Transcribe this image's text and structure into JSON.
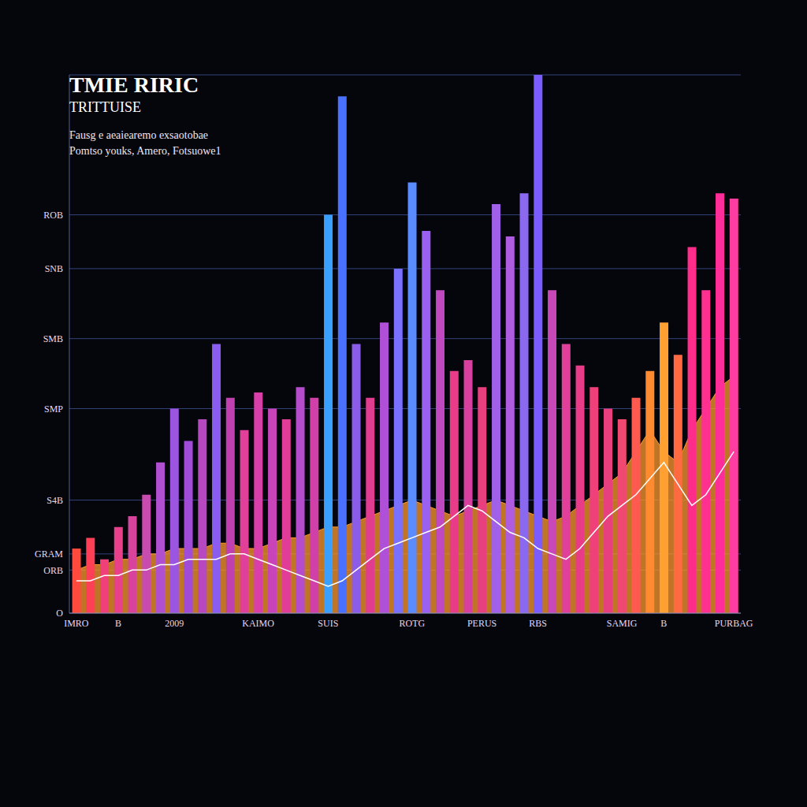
{
  "chart_data": {
    "type": "bar",
    "title": "TMIE RIRIC",
    "subtitle": "TRITTUISE",
    "annotations": [
      "Fausg e aeaiearemo exsaotobae",
      "Pomtso youks, Amero, Fotsuowe1"
    ],
    "categories": [
      "IMRO",
      null,
      null,
      "B",
      null,
      null,
      null,
      "2009",
      null,
      null,
      null,
      null,
      null,
      "KAIMO",
      null,
      null,
      null,
      null,
      "SUIS",
      null,
      null,
      null,
      null,
      null,
      "ROTG",
      null,
      null,
      null,
      null,
      "PERUS",
      null,
      null,
      null,
      "RBS",
      null,
      null,
      null,
      null,
      null,
      "SAMIG",
      null,
      null,
      "B",
      null,
      null,
      null,
      null,
      "PURBAG"
    ],
    "series": [
      {
        "type": "bar",
        "colors": [
          "#ff4a3d",
          "#ff3f55",
          "#f0407a",
          "#e8408a",
          "#d8449c",
          "#c84cb0",
          "#b050d0",
          "#9c55e0",
          "#a04cd8",
          "#b848c0",
          "#8a5cf0",
          "#c040b0",
          "#e0409a",
          "#d83fa8",
          "#c844b8",
          "#e03c98",
          "#b44ccc",
          "#d040a8",
          "#3aa0ff",
          "#4a70ff",
          "#8a5ce8",
          "#e03c90",
          "#b050d8",
          "#7a70ff",
          "#5a8cff",
          "#9a60f0",
          "#c048c0",
          "#e83c88",
          "#d840a0",
          "#e8407e",
          "#a060e8",
          "#b05ce0",
          "#8a68f0",
          "#7a5cff",
          "#c848b8",
          "#e0409a",
          "#e83c88",
          "#f0407a",
          "#e8407e",
          "#f04870",
          "#ff5a50",
          "#ff8a30",
          "#ffa030",
          "#ff6a40",
          "#ff2d8a",
          "#ff3090",
          "#ff2d9a",
          "#ff3ca0"
        ],
        "values": [
          12,
          14,
          10,
          16,
          18,
          22,
          28,
          38,
          32,
          36,
          50,
          40,
          34,
          41,
          38,
          36,
          42,
          40,
          74,
          96,
          50,
          40,
          54,
          64,
          80,
          71,
          60,
          45,
          47,
          42,
          76,
          70,
          78,
          100,
          60,
          50,
          46,
          42,
          38,
          36,
          40,
          45,
          54,
          48,
          68,
          60,
          78,
          77
        ]
      },
      {
        "type": "area",
        "color": "#ff9a2e",
        "values": [
          8,
          9,
          9,
          10,
          10,
          11,
          11,
          12,
          12,
          12,
          13,
          13,
          12,
          12,
          13,
          14,
          14,
          15,
          16,
          16,
          17,
          18,
          19,
          20,
          21,
          20,
          19,
          18,
          19,
          20,
          21,
          20,
          19,
          18,
          17,
          18,
          20,
          22,
          24,
          26,
          30,
          34,
          30,
          28,
          34,
          38,
          42,
          44
        ]
      },
      {
        "type": "line",
        "color": "#ffffff",
        "values": [
          6,
          6,
          7,
          7,
          8,
          8,
          9,
          9,
          10,
          10,
          10,
          11,
          11,
          10,
          9,
          8,
          7,
          6,
          5,
          6,
          8,
          10,
          12,
          13,
          14,
          15,
          16,
          18,
          20,
          19,
          17,
          15,
          14,
          12,
          11,
          10,
          12,
          15,
          18,
          20,
          22,
          25,
          28,
          24,
          20,
          22,
          26,
          30
        ]
      }
    ],
    "ylim": [
      0,
      100
    ],
    "yticks": [
      {
        "value": 0,
        "label": "O"
      },
      {
        "value": 8,
        "label": "ORB"
      },
      {
        "value": 11,
        "label": "GRAM"
      },
      {
        "value": 21,
        "label": "S4B"
      },
      {
        "value": 38,
        "label": "SMP"
      },
      {
        "value": 51,
        "label": "SMB"
      },
      {
        "value": 64,
        "label": "SNB"
      },
      {
        "value": 74,
        "label": "ROB"
      }
    ],
    "grid": true
  }
}
